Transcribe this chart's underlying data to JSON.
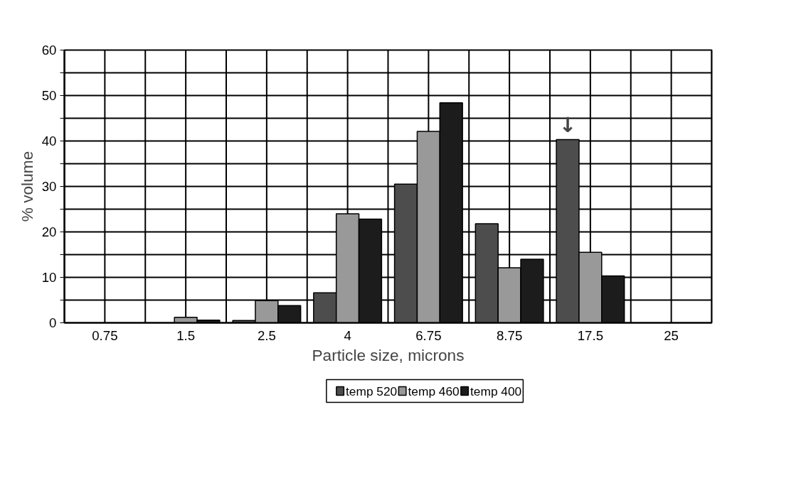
{
  "chart_data": {
    "type": "bar",
    "xlabel": "Particle size, microns",
    "ylabel": "% volume",
    "categories": [
      "0.75",
      "1.5",
      "2.5",
      "4",
      "6.75",
      "8.75",
      "17.5",
      "25"
    ],
    "series": [
      {
        "name": "temp 520",
        "color": "#4d4d4d",
        "values": [
          null,
          null,
          0.5,
          6.6,
          30.5,
          21.8,
          40.3,
          null
        ]
      },
      {
        "name": "temp 460",
        "color": "#999999",
        "values": [
          null,
          1.2,
          4.9,
          24,
          42.1,
          12.1,
          15.5,
          null
        ]
      },
      {
        "name": "temp 400",
        "color": "#1c1c1c",
        "values": [
          null,
          0.6,
          3.8,
          22.8,
          48.4,
          14,
          10.3,
          null
        ]
      }
    ],
    "ylim": [
      0,
      60
    ],
    "yticks": [
      0,
      {
        "value": 5,
        "label": null
      },
      10,
      {
        "value": 15,
        "label": null
      },
      20,
      {
        "value": 25,
        "label": null
      },
      30,
      {
        "value": 35,
        "label": null
      },
      40,
      {
        "value": 45,
        "label": null
      },
      50,
      {
        "value": 55,
        "label": null
      },
      60
    ],
    "annotations": [
      "↓"
    ],
    "grid": true,
    "legend": "bottom"
  }
}
